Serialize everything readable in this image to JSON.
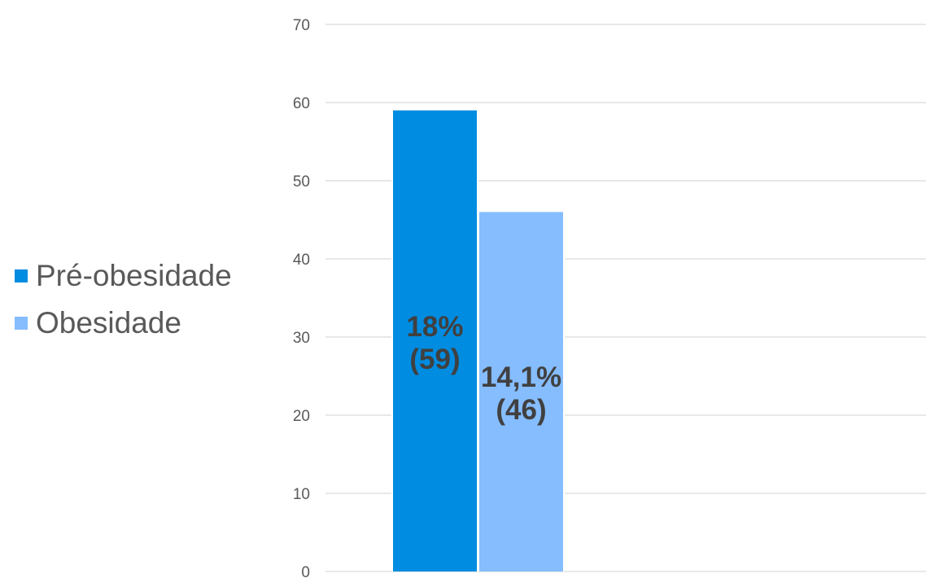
{
  "chart_data": {
    "type": "bar",
    "categories": [
      ""
    ],
    "series": [
      {
        "name": "Pré-obesidade",
        "values": [
          59
        ],
        "color": "#008CE0",
        "label_line1": "18%",
        "label_line2": "(59)"
      },
      {
        "name": "Obesidade",
        "values": [
          46
        ],
        "color": "#85BDFF",
        "label_line1": "14,1%",
        "label_line2": "(46)"
      }
    ],
    "yticks": [
      "0",
      "10",
      "20",
      "30",
      "40",
      "50",
      "60",
      "70"
    ],
    "ylim": [
      0,
      70
    ],
    "grid": true,
    "legend_position": "left"
  }
}
